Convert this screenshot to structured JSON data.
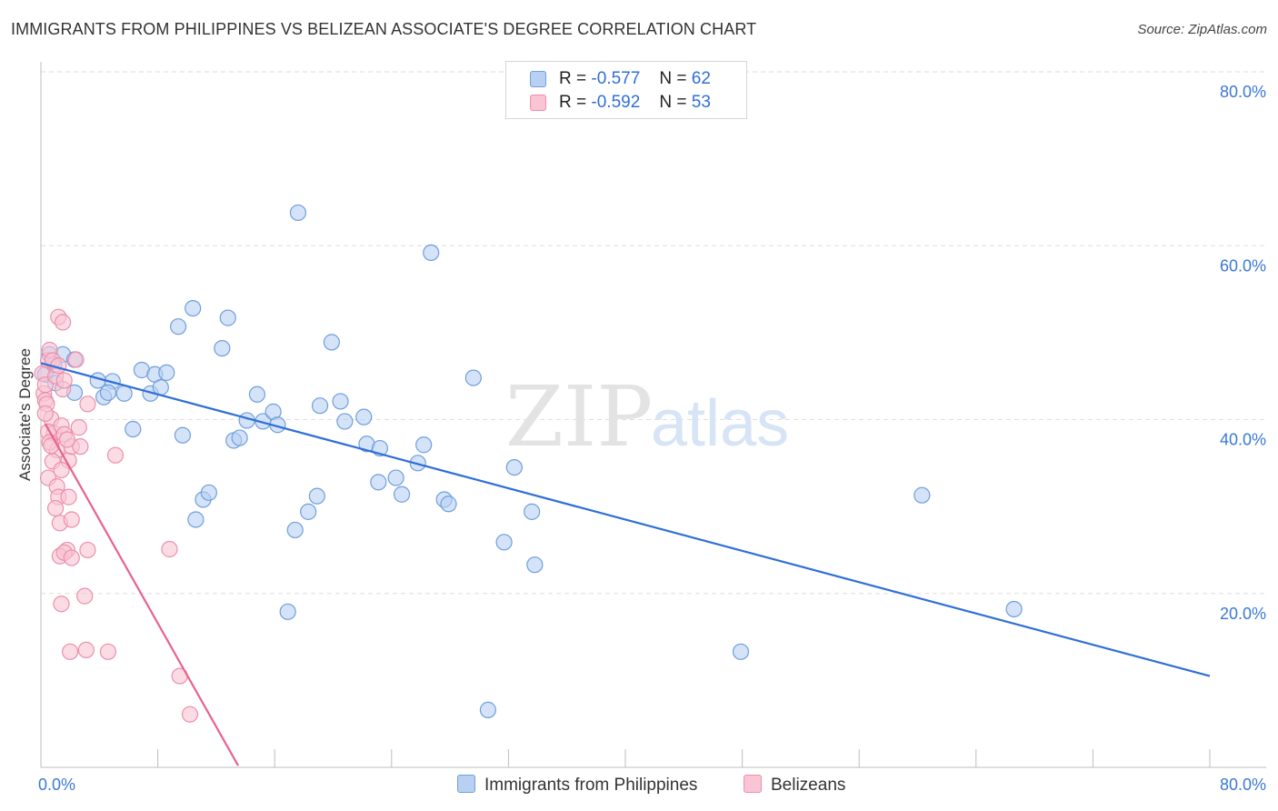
{
  "header": {
    "title": "IMMIGRANTS FROM PHILIPPINES VS BELIZEAN ASSOCIATE'S DEGREE CORRELATION CHART",
    "source": "Source: ZipAtlas.com"
  },
  "legend": {
    "series1": {
      "r_label": "R =",
      "r_value": "-0.577",
      "n_label": "N =",
      "n_value": "62"
    },
    "series2": {
      "r_label": "R =",
      "r_value": "-0.592",
      "n_label": "N =",
      "n_value": "53"
    }
  },
  "watermark": {
    "zip": "ZIP",
    "atlas": "atlas"
  },
  "colors": {
    "blue_fill": "#b8d1f3",
    "blue_stroke": "#6f9fdc",
    "blue_line": "#2f6fd6",
    "pink_fill": "#f9c4d4",
    "pink_stroke": "#ec8fab",
    "pink_line": "#e8628e",
    "axis_text": "#3a78d6",
    "grid": "#dedede"
  },
  "chart_data": {
    "type": "scatter",
    "title": "IMMIGRANTS FROM PHILIPPINES VS BELIZEAN ASSOCIATE'S DEGREE CORRELATION CHART",
    "xlabel": "",
    "ylabel": "Associate's Degree",
    "xlim": [
      0,
      80
    ],
    "ylim": [
      0,
      80
    ],
    "x_tick_labels": [
      "0.0%",
      "80.0%"
    ],
    "y_tick_labels": [
      {
        "value": 20,
        "label": "20.0%"
      },
      {
        "value": 40,
        "label": "40.0%"
      },
      {
        "value": 60,
        "label": "60.0%"
      },
      {
        "value": 80,
        "label": "80.0%"
      }
    ],
    "series": [
      {
        "name": "Immigrants from Philippines",
        "color": "#6f9fdc",
        "trend": {
          "x": [
            0.0,
            80.0
          ],
          "y": [
            46.5,
            10.5
          ]
        },
        "points": [
          [
            0.3,
            45.2
          ],
          [
            0.6,
            47.5
          ],
          [
            0.9,
            46.3
          ],
          [
            1.5,
            47.5
          ],
          [
            2.3,
            46.9
          ],
          [
            1.0,
            44.2
          ],
          [
            2.3,
            43.1
          ],
          [
            3.9,
            44.5
          ],
          [
            4.3,
            42.6
          ],
          [
            4.9,
            44.4
          ],
          [
            4.6,
            43.1
          ],
          [
            5.7,
            43.0
          ],
          [
            6.3,
            38.9
          ],
          [
            6.9,
            45.7
          ],
          [
            7.5,
            43.0
          ],
          [
            7.8,
            45.2
          ],
          [
            8.2,
            43.7
          ],
          [
            8.6,
            45.4
          ],
          [
            9.4,
            50.7
          ],
          [
            9.7,
            38.2
          ],
          [
            10.4,
            52.8
          ],
          [
            10.6,
            28.5
          ],
          [
            11.1,
            30.8
          ],
          [
            11.5,
            31.6
          ],
          [
            12.4,
            48.2
          ],
          [
            12.8,
            51.7
          ],
          [
            13.2,
            37.6
          ],
          [
            13.6,
            37.9
          ],
          [
            14.1,
            39.9
          ],
          [
            14.8,
            42.9
          ],
          [
            15.2,
            39.8
          ],
          [
            15.9,
            40.9
          ],
          [
            16.2,
            39.4
          ],
          [
            16.9,
            17.9
          ],
          [
            17.4,
            27.3
          ],
          [
            17.6,
            63.8
          ],
          [
            18.3,
            29.4
          ],
          [
            18.9,
            31.2
          ],
          [
            19.1,
            41.6
          ],
          [
            19.9,
            48.9
          ],
          [
            20.5,
            42.1
          ],
          [
            20.8,
            39.8
          ],
          [
            22.1,
            40.3
          ],
          [
            22.3,
            37.2
          ],
          [
            23.1,
            32.8
          ],
          [
            23.2,
            36.7
          ],
          [
            24.3,
            33.3
          ],
          [
            24.7,
            31.4
          ],
          [
            25.8,
            35.0
          ],
          [
            26.2,
            37.1
          ],
          [
            26.7,
            59.2
          ],
          [
            27.6,
            30.8
          ],
          [
            27.9,
            30.3
          ],
          [
            29.6,
            44.8
          ],
          [
            30.6,
            6.6
          ],
          [
            31.7,
            25.9
          ],
          [
            32.4,
            34.5
          ],
          [
            33.6,
            29.4
          ],
          [
            33.8,
            23.3
          ],
          [
            47.9,
            13.3
          ],
          [
            60.3,
            31.3
          ],
          [
            66.6,
            18.2
          ]
        ]
      },
      {
        "name": "Belizeans",
        "color": "#ec8fab",
        "trend": {
          "x": [
            0.3,
            13.5
          ],
          "y": [
            39.5,
            0.2
          ]
        },
        "points": [
          [
            0.1,
            45.3
          ],
          [
            0.2,
            43.0
          ],
          [
            0.3,
            44.0
          ],
          [
            0.3,
            42.2
          ],
          [
            0.5,
            46.8
          ],
          [
            0.6,
            48.0
          ],
          [
            0.8,
            46.8
          ],
          [
            1.0,
            45.0
          ],
          [
            1.2,
            46.2
          ],
          [
            0.4,
            41.8
          ],
          [
            0.7,
            40.1
          ],
          [
            0.9,
            38.4
          ],
          [
            1.1,
            36.5
          ],
          [
            0.5,
            38.6
          ],
          [
            0.6,
            37.4
          ],
          [
            0.8,
            35.2
          ],
          [
            1.4,
            39.3
          ],
          [
            1.6,
            38.3
          ],
          [
            1.9,
            35.3
          ],
          [
            2.1,
            36.9
          ],
          [
            2.6,
            39.1
          ],
          [
            2.7,
            36.9
          ],
          [
            1.5,
            43.5
          ],
          [
            1.6,
            44.5
          ],
          [
            1.2,
            51.8
          ],
          [
            1.5,
            51.2
          ],
          [
            0.5,
            33.3
          ],
          [
            1.1,
            32.3
          ],
          [
            1.2,
            31.1
          ],
          [
            1.9,
            31.1
          ],
          [
            1.0,
            29.8
          ],
          [
            1.3,
            28.1
          ],
          [
            2.1,
            28.5
          ],
          [
            1.8,
            25.0
          ],
          [
            1.3,
            24.3
          ],
          [
            1.6,
            24.7
          ],
          [
            2.1,
            24.1
          ],
          [
            3.2,
            25.0
          ],
          [
            1.4,
            18.8
          ],
          [
            3.0,
            19.7
          ],
          [
            2.0,
            13.3
          ],
          [
            3.1,
            13.5
          ],
          [
            4.6,
            13.3
          ],
          [
            3.2,
            41.8
          ],
          [
            5.1,
            35.9
          ],
          [
            8.8,
            25.1
          ],
          [
            9.5,
            10.5
          ],
          [
            10.2,
            6.1
          ],
          [
            2.4,
            46.9
          ],
          [
            0.3,
            40.7
          ],
          [
            0.7,
            37.0
          ],
          [
            1.8,
            37.7
          ],
          [
            1.4,
            34.2
          ]
        ]
      }
    ]
  },
  "bottom_legend": {
    "item1": "Immigrants from Philippines",
    "item2": "Belizeans"
  }
}
